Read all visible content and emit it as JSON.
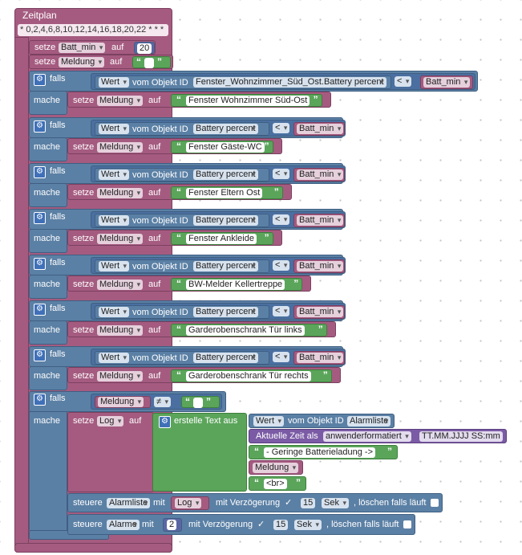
{
  "schedule": {
    "title": "Zeitplan",
    "cron": "* 0,2,4,6,8,10,12,14,16,18,20,22 * * *"
  },
  "kw": {
    "setze": "setze",
    "auf": "auf",
    "falls": "falls",
    "mache": "mache",
    "wert": "Wert",
    "vom_objekt": "vom Objekt ID",
    "lt": "<",
    "ne": "≠",
    "steuere": "steuere",
    "mit": "mit",
    "mit_verz": "mit Verzögerung",
    "loeschen": ", löschen falls läuft",
    "erstelle": "erstelle Text aus",
    "aktuelle_zeit": "Aktuelle Zeit als",
    "gear": "⚙",
    "quote_open": "“",
    "quote_close": "”"
  },
  "init": {
    "var1": "Batt_min",
    "val1": "20",
    "var2": "Meldung"
  },
  "conditions": [
    {
      "object": "Fenster_Wohnzimmer_Süd_Ost.Battery percent",
      "var": "Batt_min",
      "set_var": "Meldung",
      "text": "Fenster Wohnzimmer Süd-Ost"
    },
    {
      "object": "Battery percent",
      "var": "Batt_min",
      "set_var": "Meldung",
      "text": "Fenster Gäste-WC"
    },
    {
      "object": "Battery percent",
      "var": "Batt_min",
      "set_var": "Meldung",
      "text": "Fenster Eltern Ost"
    },
    {
      "object": "Battery percent",
      "var": "Batt_min",
      "set_var": "Meldung",
      "text": "Fenster Ankleide"
    },
    {
      "object": "Battery percent",
      "var": "Batt_min",
      "set_var": "Meldung",
      "text": "BW-Melder Kellertreppe"
    },
    {
      "object": "Battery percent",
      "var": "Batt_min",
      "set_var": "Meldung",
      "text": "Garderobenschrank Tür links"
    },
    {
      "object": "Battery percent",
      "var": "Batt_min",
      "set_var": "Meldung",
      "text": "Garderobenschrank Tür rechts"
    }
  ],
  "last": {
    "var": "Meldung",
    "set_var": "Log",
    "object": "Alarmliste",
    "format": "anwenderformatiert",
    "format_str": "TT.MM.JJJJ SS:mm",
    "text1": "- Geringe Batterieladung ->",
    "msg_var": "Meldung",
    "text2": "<br>"
  },
  "ctrl1": {
    "target": "Alarmliste",
    "value_var": "Log",
    "delay": "15",
    "unit": "Sek"
  },
  "ctrl2": {
    "target": "Alarme",
    "value": "2",
    "delay": "15",
    "unit": "Sek"
  },
  "colors": {
    "variables": "#a55b80",
    "logic": "#5b80a5",
    "text": "#5ba55b",
    "datetime": "#7b5ba5"
  }
}
